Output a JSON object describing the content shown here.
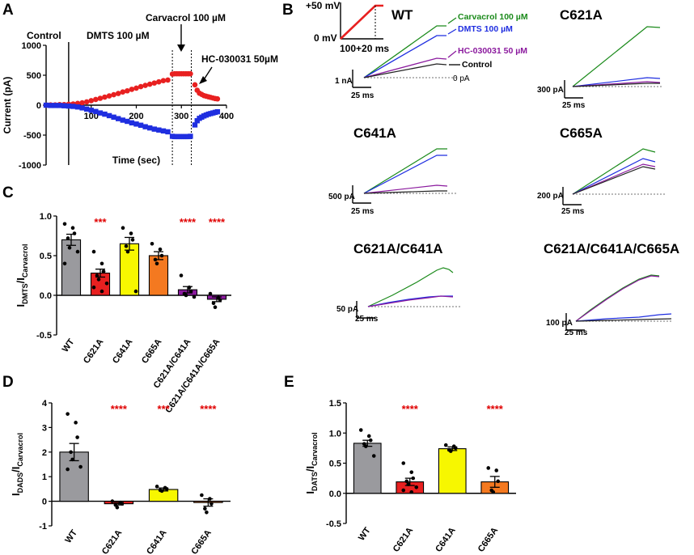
{
  "colors": {
    "red": "#e82020",
    "blue": "#1f2ee0",
    "green": "#1a8a1a",
    "purple": "#8b1a9e",
    "grey": "#9a9a9e",
    "yellow": "#f7f700",
    "orange": "#f47920",
    "sig": "#e00000"
  },
  "panelA": {
    "letter": "A",
    "control": "Control",
    "dmts": "DMTS 100 µM",
    "carvacrol": "Carvacrol 100 µM",
    "hc": "HC-030031 50µM",
    "xlabel": "Time (sec)",
    "ylabel": "Current (pA)"
  },
  "panelB": {
    "letter": "B",
    "protocol": {
      "top": "+50 mV",
      "bottom": "0 mV",
      "duration": "100+20 ms"
    },
    "legend": {
      "carvacrol": "Carvacrol 100 µM",
      "dmts": "DMTS 100 µM",
      "hc": "HC-030031 50 µM",
      "control": "Control",
      "zero": "0 pA"
    },
    "cells": [
      {
        "title": "WT",
        "scale": "1 nA",
        "time": "25 ms"
      },
      {
        "title": "C621A",
        "scale": "300 pA",
        "time": "25 ms"
      },
      {
        "title": "C641A",
        "scale": "500 pA",
        "time": "25 ms"
      },
      {
        "title": "C665A",
        "scale": "200 pA",
        "time": "25 ms"
      },
      {
        "title": "C621A/C641A",
        "scale": "50 pA",
        "time": "25 ms"
      },
      {
        "title": "C621A/C641A/C665A",
        "scale": "100 pA",
        "time": "25 ms"
      }
    ]
  },
  "panelC": {
    "letter": "C"
  },
  "panelD": {
    "letter": "D"
  },
  "panelE": {
    "letter": "E"
  },
  "chart_data": [
    {
      "id": "A",
      "type": "scatter",
      "title": "",
      "xlabel": "Time (sec)",
      "ylabel": "Current (pA)",
      "xlim": [
        0,
        400
      ],
      "ylim": [
        -1000,
        1000
      ],
      "xticks": [
        100,
        200,
        300,
        400
      ],
      "yticks": [
        1000,
        500,
        0,
        -500,
        -1000
      ],
      "vlines": {
        "solid": 50,
        "dotted": [
          280,
          322
        ]
      },
      "series": [
        {
          "name": "outward",
          "color": "red",
          "x": [
            0,
            10,
            20,
            30,
            40,
            50,
            60,
            70,
            80,
            90,
            100,
            110,
            120,
            130,
            140,
            150,
            160,
            170,
            180,
            190,
            200,
            210,
            220,
            230,
            240,
            250,
            260,
            270,
            280,
            285,
            290,
            295,
            300,
            305,
            310,
            315,
            320,
            330,
            335,
            340,
            345,
            350,
            355,
            360,
            365,
            370,
            375,
            380
          ],
          "y": [
            0,
            5,
            5,
            10,
            10,
            15,
            20,
            30,
            40,
            55,
            75,
            95,
            115,
            135,
            155,
            175,
            195,
            220,
            240,
            265,
            285,
            310,
            330,
            350,
            370,
            390,
            410,
            420,
            520,
            525,
            525,
            525,
            525,
            525,
            525,
            525,
            525,
            340,
            250,
            200,
            180,
            160,
            150,
            140,
            130,
            120,
            110,
            105
          ]
        },
        {
          "name": "inward",
          "color": "blue",
          "x": [
            0,
            10,
            20,
            30,
            40,
            50,
            60,
            70,
            80,
            90,
            100,
            110,
            120,
            130,
            140,
            150,
            160,
            170,
            180,
            190,
            200,
            210,
            220,
            230,
            240,
            250,
            260,
            270,
            280,
            285,
            290,
            295,
            300,
            305,
            310,
            315,
            320,
            330,
            335,
            340,
            345,
            350,
            355,
            360,
            365,
            370,
            375,
            380
          ],
          "y": [
            0,
            -5,
            -5,
            -5,
            -10,
            -15,
            -20,
            -30,
            -45,
            -65,
            -85,
            -105,
            -130,
            -150,
            -175,
            -200,
            -225,
            -250,
            -270,
            -295,
            -315,
            -335,
            -360,
            -380,
            -400,
            -415,
            -430,
            -445,
            -520,
            -525,
            -525,
            -525,
            -525,
            -525,
            -525,
            -525,
            -520,
            -330,
            -260,
            -220,
            -200,
            -180,
            -165,
            -150,
            -140,
            -130,
            -120,
            -110
          ]
        }
      ]
    },
    {
      "id": "C",
      "type": "bar",
      "ylabel_main": "I",
      "ylabel_sub1": "DMTS",
      "ylabel_mid": "/I",
      "ylabel_sub2": "Carvacrol",
      "ylim": [
        -0.5,
        1.0
      ],
      "yticks": [
        "-0.5",
        "0.0",
        "0.5",
        "1.0"
      ],
      "categories": [
        "WT",
        "C621A",
        "C641A",
        "C665A",
        "C621A/C641A",
        "C621A/C641A/C665A"
      ],
      "values": [
        0.7,
        0.28,
        0.65,
        0.5,
        0.07,
        -0.05
      ],
      "errors": [
        0.07,
        0.05,
        0.08,
        0.05,
        0.04,
        0.03
      ],
      "bar_colors": [
        "grey",
        "red",
        "yellow",
        "orange",
        "purple",
        "purple"
      ],
      "significance": [
        "",
        "***",
        "",
        "",
        "****",
        "****"
      ],
      "points": [
        [
          0.9,
          0.85,
          0.78,
          0.72,
          0.6,
          0.55,
          0.4
        ],
        [
          0.55,
          0.4,
          0.3,
          0.25,
          0.2,
          0.15,
          0.1,
          0.05,
          0.3
        ],
        [
          0.85,
          0.78,
          0.7,
          0.62,
          0.55,
          0.05
        ],
        [
          0.65,
          0.58,
          0.5,
          0.45,
          0.4
        ],
        [
          0.25,
          0.1,
          0.05,
          0.02,
          0.0,
          -0.02
        ],
        [
          0.02,
          -0.03,
          -0.06,
          -0.1,
          -0.15
        ]
      ]
    },
    {
      "id": "D",
      "type": "bar",
      "ylabel_main": "I",
      "ylabel_sub1": "DADS",
      "ylabel_mid": "/I",
      "ylabel_sub2": "Carvacrol",
      "ylim": [
        -1,
        4
      ],
      "yticks": [
        "-1",
        "0",
        "1",
        "2",
        "3",
        "4"
      ],
      "categories": [
        "WT",
        "C621A",
        "C641A",
        "C665A"
      ],
      "values": [
        2.0,
        -0.1,
        0.48,
        -0.05
      ],
      "errors": [
        0.35,
        0.05,
        0.06,
        0.15
      ],
      "bar_colors": [
        "grey",
        "red",
        "yellow",
        "orange"
      ],
      "significance": [
        "",
        "****",
        "***",
        "****"
      ],
      "points": [
        [
          3.55,
          3.2,
          2.6,
          2.0,
          1.7,
          1.4,
          1.3
        ],
        [
          0.0,
          -0.05,
          -0.1,
          -0.15,
          -0.25
        ],
        [
          0.6,
          0.55,
          0.5,
          0.45,
          0.42
        ],
        [
          0.25,
          0.1,
          -0.1,
          -0.3,
          -0.45
        ]
      ]
    },
    {
      "id": "E",
      "type": "bar",
      "ylabel_main": "I",
      "ylabel_sub1": "DATS",
      "ylabel_mid": "/I",
      "ylabel_sub2": "Carvacrol",
      "ylim": [
        -0.5,
        1.5
      ],
      "yticks": [
        "-0.5",
        "0.0",
        "0.5",
        "1.0",
        "1.5"
      ],
      "categories": [
        "WT",
        "C621A",
        "C641A",
        "C665A"
      ],
      "values": [
        0.83,
        0.19,
        0.74,
        0.19
      ],
      "errors": [
        0.05,
        0.06,
        0.03,
        0.09
      ],
      "bar_colors": [
        "grey",
        "red",
        "yellow",
        "orange"
      ],
      "significance": [
        "",
        "****",
        "",
        "****"
      ],
      "points": [
        [
          1.05,
          0.95,
          0.88,
          0.82,
          0.78,
          0.62
        ],
        [
          0.5,
          0.35,
          0.25,
          0.2,
          0.15,
          0.1,
          0.05,
          0.02
        ],
        [
          0.8,
          0.78,
          0.75,
          0.72,
          0.7
        ],
        [
          0.42,
          0.38,
          0.2,
          0.05,
          0.02
        ]
      ]
    }
  ]
}
